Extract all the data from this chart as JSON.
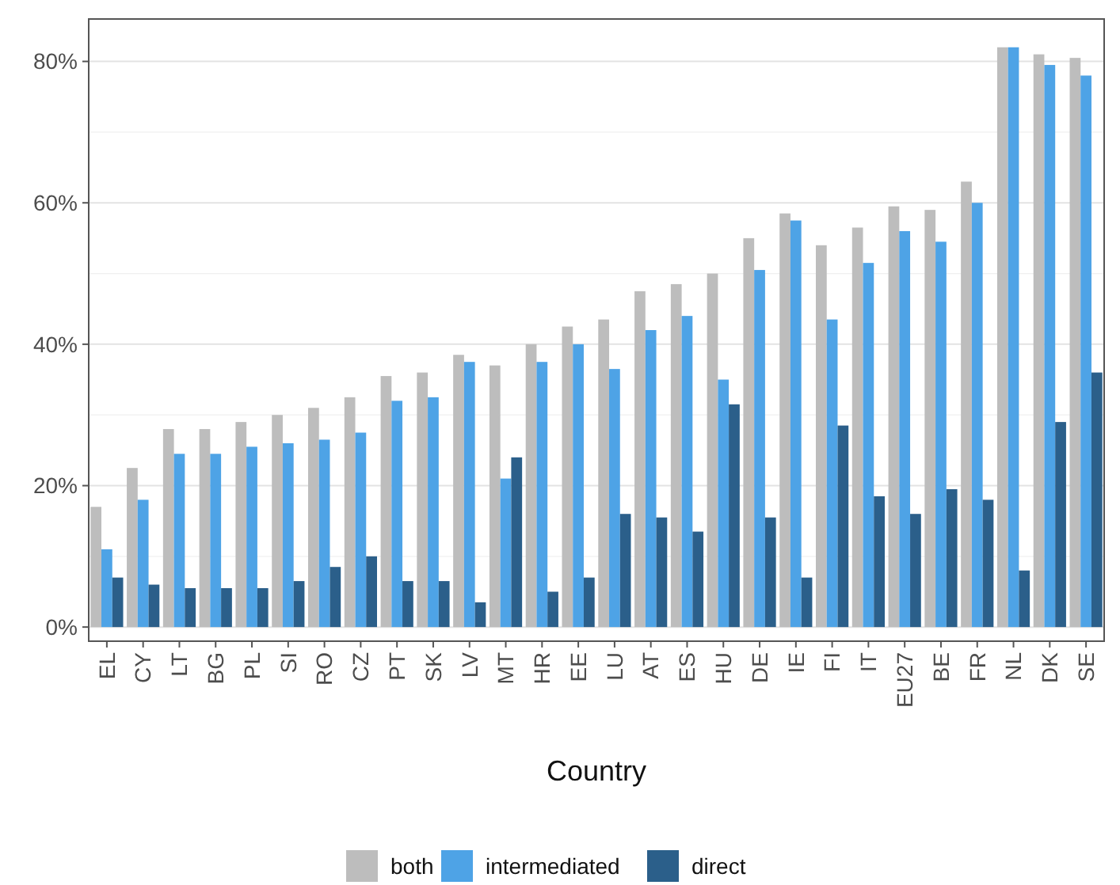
{
  "chart_data": {
    "type": "bar",
    "xlabel": "Country",
    "categories": [
      "EL",
      "CY",
      "LT",
      "BG",
      "PL",
      "SI",
      "RO",
      "CZ",
      "PT",
      "SK",
      "LV",
      "MT",
      "HR",
      "EE",
      "LU",
      "AT",
      "ES",
      "HU",
      "DE",
      "IE",
      "FI",
      "IT",
      "EU27",
      "BE",
      "FR",
      "NL",
      "DK",
      "SE"
    ],
    "series": [
      {
        "name": "both",
        "color": "#bdbdbd",
        "values": [
          17,
          22.5,
          28,
          28,
          29,
          30,
          31,
          32.5,
          35.5,
          36,
          38.5,
          37,
          40,
          42.5,
          43.5,
          47.5,
          48.5,
          50,
          55,
          58.5,
          54,
          56.5,
          59.5,
          59,
          63,
          82,
          81,
          80.5
        ]
      },
      {
        "name": "intermediated",
        "color": "#4ea3e6",
        "values": [
          11,
          18,
          24.5,
          24.5,
          25.5,
          26,
          26.5,
          27.5,
          32,
          32.5,
          37.5,
          21,
          37.5,
          40,
          36.5,
          42,
          44,
          35,
          50.5,
          57.5,
          43.5,
          51.5,
          56,
          54.5,
          60,
          82,
          79.5,
          78
        ]
      },
      {
        "name": "direct",
        "color": "#2b5f8a",
        "values": [
          7,
          6,
          5.5,
          5.5,
          5.5,
          6.5,
          8.5,
          10,
          6.5,
          6.5,
          3.5,
          24,
          5,
          7,
          16,
          15.5,
          13.5,
          31.5,
          15.5,
          7,
          28.5,
          18.5,
          16,
          19.5,
          18,
          8,
          29,
          36
        ]
      }
    ],
    "ylim": [
      -2,
      86
    ],
    "yticks": [
      {
        "value": 0,
        "label": "0%"
      },
      {
        "value": 20,
        "label": "20%"
      },
      {
        "value": 40,
        "label": "40%"
      },
      {
        "value": 60,
        "label": "60%"
      },
      {
        "value": 80,
        "label": "80%"
      }
    ],
    "grid": true,
    "legend": "bottom"
  }
}
